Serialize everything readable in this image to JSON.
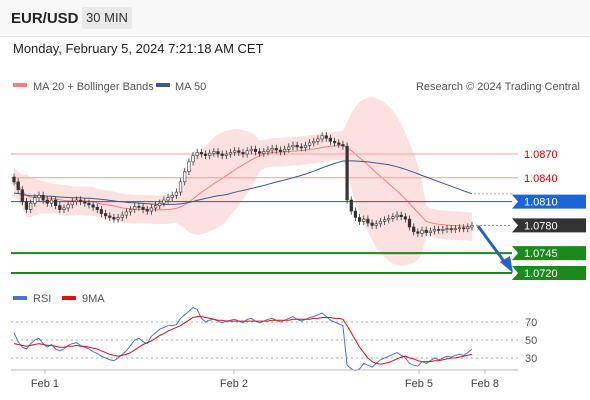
{
  "header": {
    "pair": "EUR/USD",
    "timeframe": "30 MIN",
    "datetime": "Monday, February 5, 2024 7:21:18 AM CET"
  },
  "legend": {
    "bb": "MA 20 + Bollinger Bands",
    "ma50": "MA 50",
    "credit": "Research © 2024 Trading Central",
    "rsi": "RSI",
    "rsi_ma": "9MA",
    "bb_color": "#f08080",
    "ma50_color": "#3a5a8c"
  },
  "chart_data": [
    {
      "type": "candlestick",
      "x_labels": [
        "Feb 1",
        "Feb 2",
        "Feb 5",
        "Feb 8"
      ],
      "y_range": [
        1.0705,
        1.0935
      ],
      "price_levels": [
        {
          "value": 1.087,
          "label": "1.0870",
          "kind": "resistance",
          "color": "#cc0000"
        },
        {
          "value": 1.084,
          "label": "1.0840",
          "kind": "resistance",
          "color": "#cc0000"
        },
        {
          "value": 1.081,
          "label": "1.0810",
          "kind": "pivot",
          "color": "#1a66d9"
        },
        {
          "value": 1.078,
          "label": "1.0780",
          "kind": "last",
          "color": "#333333"
        },
        {
          "value": 1.0745,
          "label": "1.0745",
          "kind": "support",
          "color": "#1a8a1a"
        },
        {
          "value": 1.072,
          "label": "1.0720",
          "kind": "support",
          "color": "#1a8a1a"
        }
      ],
      "close": [
        1.0835,
        1.0825,
        1.081,
        1.08,
        1.0808,
        1.0815,
        1.0818,
        1.0812,
        1.0808,
        1.0812,
        1.0805,
        1.08,
        1.0802,
        1.0806,
        1.081,
        1.0812,
        1.081,
        1.0808,
        1.0806,
        1.0803,
        1.08,
        1.0795,
        1.0792,
        1.079,
        1.0788,
        1.079,
        1.0793,
        1.0797,
        1.08,
        1.0804,
        1.0803,
        1.08,
        1.0798,
        1.0802,
        1.0805,
        1.0808,
        1.0812,
        1.0815,
        1.0818,
        1.0822,
        1.0835,
        1.0848,
        1.086,
        1.0868,
        1.0872,
        1.087,
        1.0868,
        1.0871,
        1.0873,
        1.087,
        1.0868,
        1.087,
        1.0872,
        1.0874,
        1.0872,
        1.087,
        1.0874,
        1.0876,
        1.0873,
        1.0871,
        1.0873,
        1.0875,
        1.0877,
        1.0875,
        1.0873,
        1.0876,
        1.0879,
        1.0881,
        1.0879,
        1.0878,
        1.0881,
        1.0884,
        1.0886,
        1.0889,
        1.0893,
        1.089,
        1.0886,
        1.0884,
        1.0882,
        1.088,
        1.0812,
        1.0798,
        1.079,
        1.0785,
        1.0788,
        1.0783,
        1.078,
        1.0782,
        1.0785,
        1.0787,
        1.0789,
        1.0791,
        1.0793,
        1.0791,
        1.0788,
        1.0778,
        1.0772,
        1.077,
        1.0774,
        1.0771,
        1.0773,
        1.0775,
        1.0774,
        1.0775,
        1.0776,
        1.0775,
        1.0776,
        1.0777,
        1.0776,
        1.0778,
        1.078
      ],
      "rsi": [
        58,
        48,
        42,
        40,
        46,
        50,
        52,
        46,
        42,
        45,
        40,
        38,
        40,
        44,
        46,
        47,
        44,
        42,
        40,
        37,
        35,
        32,
        30,
        28,
        27,
        30,
        34,
        38,
        44,
        50,
        52,
        48,
        46,
        54,
        58,
        62,
        64,
        66,
        66,
        67,
        74,
        78,
        82,
        86,
        84,
        74,
        70,
        72,
        73,
        71,
        69,
        71,
        72,
        73,
        71,
        69,
        73,
        74,
        71,
        69,
        71,
        73,
        74,
        72,
        70,
        72,
        74,
        76,
        73,
        71,
        73,
        75,
        76,
        78,
        80,
        76,
        72,
        70,
        68,
        66,
        22,
        18,
        16,
        18,
        24,
        22,
        20,
        24,
        28,
        30,
        32,
        34,
        36,
        33,
        30,
        24,
        22,
        21,
        26,
        24,
        27,
        30,
        28,
        30,
        32,
        31,
        33,
        34,
        33,
        36,
        40
      ],
      "rsi_ma": [
        46,
        45,
        44,
        43,
        44,
        45,
        46,
        45,
        44,
        44,
        43,
        42,
        42,
        43,
        43,
        44,
        43,
        43,
        42,
        41,
        40,
        38,
        36,
        34,
        33,
        32,
        33,
        34,
        36,
        39,
        42,
        45,
        47,
        49,
        52,
        55,
        57,
        60,
        62,
        64,
        66,
        69,
        72,
        75,
        76,
        76,
        75,
        74,
        73,
        72,
        72,
        71,
        71,
        71,
        71,
        71,
        71,
        71,
        71,
        71,
        71,
        71,
        72,
        72,
        72,
        72,
        72,
        73,
        73,
        73,
        73,
        73,
        74,
        74,
        75,
        75,
        75,
        74,
        74,
        73,
        66,
        58,
        50,
        42,
        36,
        30,
        26,
        24,
        23,
        24,
        25,
        27,
        29,
        31,
        32,
        30,
        29,
        27,
        26,
        26,
        26,
        27,
        27,
        28,
        29,
        30,
        30,
        31,
        32,
        33,
        34
      ],
      "rsi_axis": [
        70,
        50,
        30
      ]
    }
  ]
}
